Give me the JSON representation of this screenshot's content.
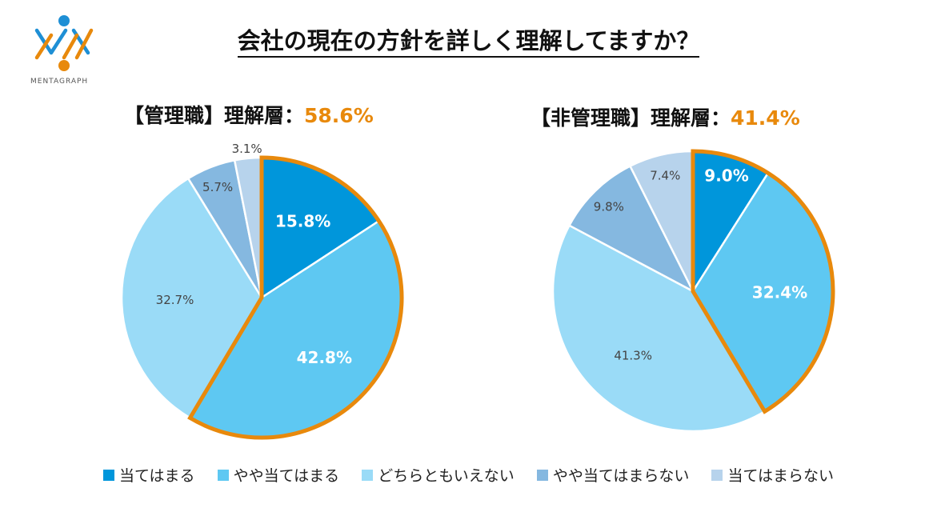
{
  "title": "会社の現在の方針を詳しく理解してますか？",
  "logo": {
    "text": "MENTAGRAPH",
    "blue": "#1E8FD5",
    "orange": "#E8890C"
  },
  "highlight_color": "#E8890C",
  "chart_data": [
    {
      "type": "pie",
      "title_prefix": "【管理職】理解層：",
      "title_value": "58.6%",
      "categories": [
        "当てはまる",
        "やや当てはまる",
        "どちらともいえない",
        "やや当てはまらない",
        "当てはまらない"
      ],
      "values": [
        15.8,
        42.8,
        32.7,
        5.7,
        3.1
      ],
      "labels": [
        "15.8%",
        "42.8%",
        "32.7%",
        "5.7%",
        "3.1%"
      ],
      "highlighted": [
        0,
        1
      ]
    },
    {
      "type": "pie",
      "title_prefix": "【非管理職】理解層：",
      "title_value": "41.4%",
      "categories": [
        "当てはまる",
        "やや当てはまる",
        "どちらともいえない",
        "やや当てはまらない",
        "当てはまらない"
      ],
      "values": [
        9.0,
        32.4,
        41.3,
        9.8,
        7.4
      ],
      "labels": [
        "9.0%",
        "32.4%",
        "41.3%",
        "9.8%",
        "7.4%"
      ],
      "highlighted": [
        0,
        1
      ]
    }
  ],
  "legend": {
    "items": [
      "当てはまる",
      "やや当てはまる",
      "どちらともいえない",
      "やや当てはまらない",
      "当てはまらない"
    ],
    "colors": [
      "#0096DB",
      "#5EC8F2",
      "#9ADBF7",
      "#85B8E0",
      "#B7D3EC"
    ]
  }
}
